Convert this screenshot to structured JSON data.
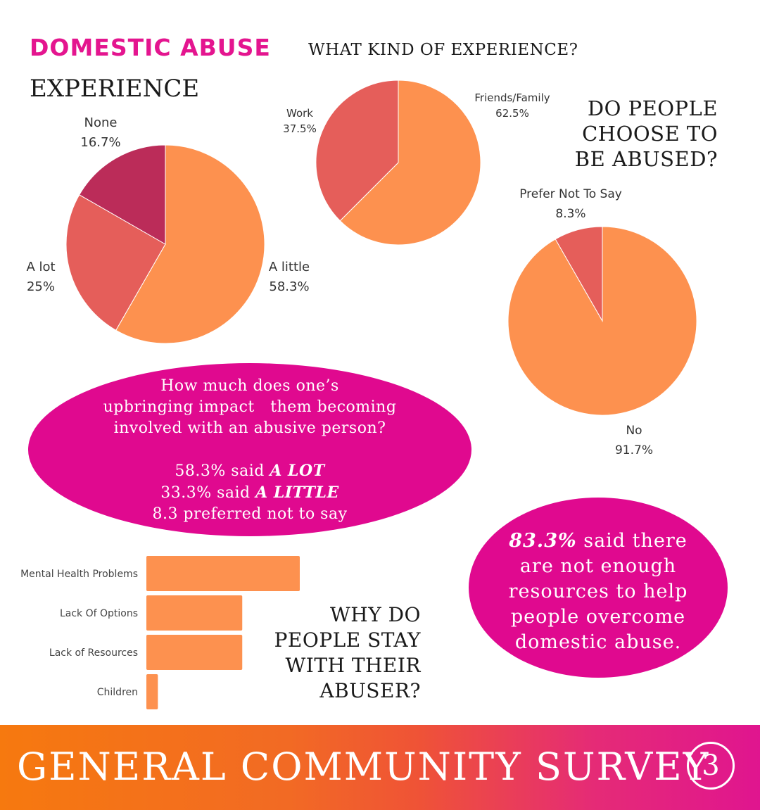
{
  "header": {
    "title": "DOMESTIC ABUSE",
    "subtitle": "EXPERIENCE",
    "kind_title": "WHAT KIND OF EXPERIENCE?",
    "choose_title_lines": [
      "DO PEOPLE",
      "CHOOSE TO",
      "BE ABUSED?"
    ]
  },
  "upbringing": {
    "question_lines": [
      "How much does one’s",
      "upbringing impact   them becoming",
      "involved with an abusive person?"
    ],
    "stat1_pre": "58.3% said ",
    "stat1_em": "A LOT",
    "stat2_pre": "33.3% said ",
    "stat2_em": "A LITTLE",
    "stat3": "8.3 preferred not to say"
  },
  "resources": {
    "highlight": "83.3%",
    "text_lines": [
      " said there",
      "are not enough",
      "resources to help",
      "people overcome",
      "domestic abuse."
    ]
  },
  "stay_title_lines": [
    "WHY DO",
    "PEOPLE STAY",
    "WITH THEIR",
    "ABUSER?"
  ],
  "footer": {
    "title": "GENERAL COMMUNITY SURVEY",
    "page_number": "3"
  },
  "colors": {
    "orange": "#fd914f",
    "coral": "#e55e5a",
    "maroon": "#bb2c59",
    "magenta": "#e0098f"
  },
  "chart_data": [
    {
      "type": "pie",
      "title": "EXPERIENCE",
      "slices": [
        {
          "label": "A little",
          "value_label": "58.3%",
          "value": 58.3,
          "color": "#fd914f"
        },
        {
          "label": "A lot",
          "value_label": "25%",
          "value": 25,
          "color": "#e55e5a"
        },
        {
          "label": "None",
          "value_label": "16.7%",
          "value": 16.7,
          "color": "#bb2c59"
        }
      ]
    },
    {
      "type": "pie",
      "title": "WHAT KIND OF EXPERIENCE?",
      "slices": [
        {
          "label": "Friends/Family",
          "value_label": "62.5%",
          "value": 62.5,
          "color": "#fd914f"
        },
        {
          "label": "Work",
          "value_label": "37.5%",
          "value": 37.5,
          "color": "#e55e5a"
        }
      ]
    },
    {
      "type": "pie",
      "title": "DO PEOPLE CHOOSE TO BE ABUSED?",
      "slices": [
        {
          "label": "No",
          "value_label": "91.7%",
          "value": 91.7,
          "color": "#fd914f"
        },
        {
          "label": "Prefer Not To Say",
          "value_label": "8.3%",
          "value": 8.3,
          "color": "#e55e5a"
        }
      ]
    },
    {
      "type": "bar",
      "orientation": "horizontal",
      "title": "WHY DO PEOPLE STAY WITH THEIR ABUSER?",
      "categories": [
        "Mental Health Problems",
        "Lack Of Options",
        "Lack of Resources",
        "Children"
      ],
      "values": [
        4,
        2.5,
        2.5,
        0.3
      ],
      "color": "#fd914f"
    }
  ]
}
